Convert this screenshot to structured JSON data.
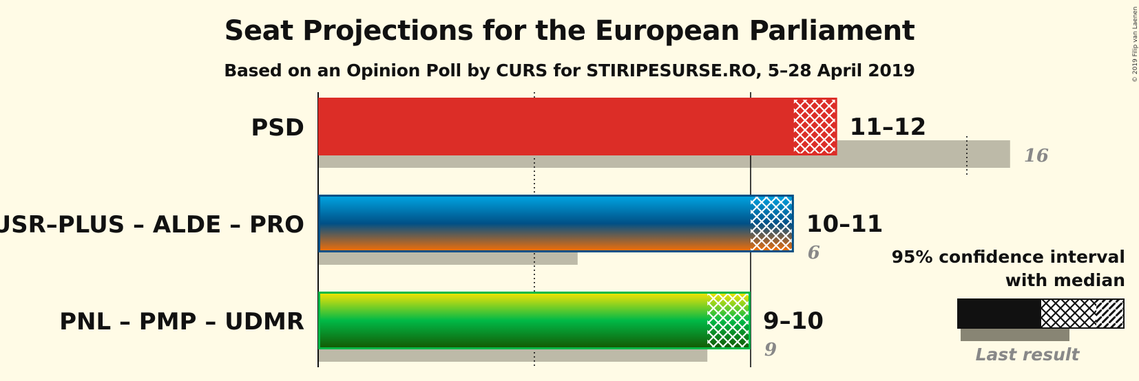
{
  "chart_data": {
    "type": "bar",
    "title": "Seat Projections for the European Parliament",
    "subtitle": "Based on an Opinion Poll by CURS for STIRIPESURSE.RO, 5–28 April 2019",
    "copyright": "© 2019 Filip van Laenen",
    "xlim": [
      0,
      16
    ],
    "gridlines": [
      5,
      10,
      15
    ],
    "categories": [
      "PSD",
      "USR–PLUS – ALDE – PRO",
      "PNL – PMP – UDMR"
    ],
    "parties": [
      {
        "name": "PSD",
        "ci_low": 11,
        "ci_high": 12,
        "range_label": "11–12",
        "last_result": 16,
        "last_label": "16",
        "colors": [
          "#dc2d27"
        ]
      },
      {
        "name": "USR–PLUS – ALDE – PRO",
        "ci_low": 10,
        "ci_high": 11,
        "range_label": "10–11",
        "last_result": 6,
        "last_label": "6",
        "colors": [
          "#00a8e6",
          "#005086",
          "#ff7000"
        ]
      },
      {
        "name": "PNL – PMP – UDMR",
        "ci_low": 9,
        "ci_high": 10,
        "range_label": "9–10",
        "last_result": 9,
        "last_label": "9",
        "colors": [
          "#ffe600",
          "#00b947",
          "#155500"
        ]
      }
    ],
    "legend": {
      "line1": "95% confidence interval",
      "line2": "with median",
      "last_result_label": "Last result",
      "placement": "bottom-right"
    }
  }
}
